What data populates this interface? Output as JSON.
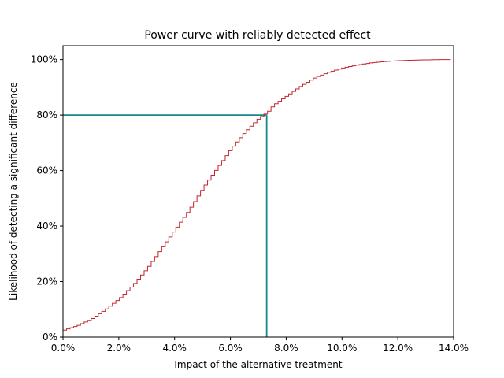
{
  "chart_data": {
    "type": "line",
    "style": "step",
    "title": "Power curve with reliably detected effect",
    "xlabel": "Impact of the alternative treatment",
    "ylabel": "Likelihood of detecting a significant difference",
    "xlim": [
      0.0,
      0.14
    ],
    "ylim": [
      0.0,
      1.05
    ],
    "x_ticks": [
      0.0,
      0.02,
      0.04,
      0.06,
      0.08,
      0.1,
      0.12,
      0.14
    ],
    "x_tick_labels": [
      "0.0%",
      "2.0%",
      "4.0%",
      "6.0%",
      "8.0%",
      "10.0%",
      "12.0%",
      "14.0%"
    ],
    "y_ticks": [
      0.0,
      0.2,
      0.4,
      0.6,
      0.8,
      1.0
    ],
    "y_tick_labels": [
      "0%",
      "20%",
      "40%",
      "60%",
      "80%",
      "100%"
    ],
    "grid": false,
    "colors": {
      "curve": "#c0272d",
      "reference": "#13898b"
    },
    "series": [
      {
        "x": [
          0.0,
          0.005,
          0.01,
          0.015,
          0.02,
          0.025,
          0.03,
          0.035,
          0.04,
          0.045,
          0.05,
          0.055,
          0.06,
          0.065,
          0.07,
          0.073,
          0.075,
          0.08,
          0.085,
          0.09,
          0.095,
          0.1,
          0.105,
          0.11,
          0.115,
          0.12,
          0.125,
          0.13,
          0.135,
          0.139
        ],
        "y": [
          0.025,
          0.042,
          0.066,
          0.1,
          0.14,
          0.19,
          0.25,
          0.32,
          0.39,
          0.46,
          0.54,
          0.61,
          0.68,
          0.74,
          0.79,
          0.81,
          0.835,
          0.87,
          0.905,
          0.935,
          0.955,
          0.97,
          0.98,
          0.988,
          0.993,
          0.996,
          0.998,
          0.999,
          1.0,
          1.0
        ]
      }
    ],
    "reference": {
      "x": 0.073,
      "y": 0.8
    }
  }
}
